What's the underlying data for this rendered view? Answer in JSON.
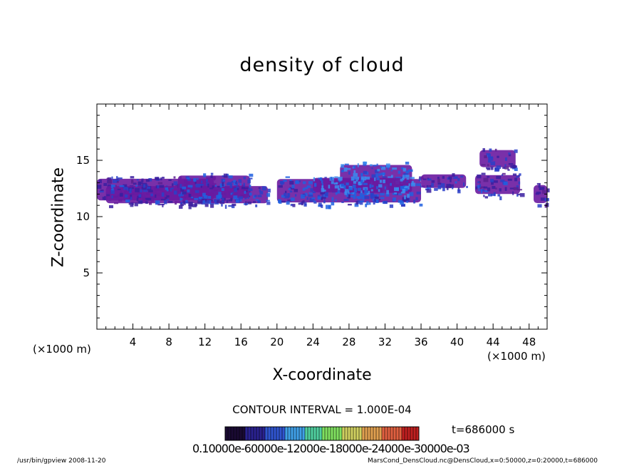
{
  "chart_data": {
    "type": "heatmap",
    "title": "density of cloud",
    "xlabel": "X-coordinate",
    "ylabel": "Z-coordinate",
    "x_unit_label": "(×1000 m)",
    "xlim": [
      0,
      50
    ],
    "ylim": [
      0,
      20
    ],
    "xticks": [
      4,
      8,
      12,
      16,
      20,
      24,
      28,
      32,
      36,
      40,
      44,
      48
    ],
    "yticks": [
      5,
      10,
      15
    ],
    "contour_interval_label": "CONTOUR INTERVAL = 1.000E-04",
    "time_label": "t=686000 s",
    "colorbar_labels": "0.10000e-60000e-12000e-18000e-24000e-30000e-03",
    "colorbar_colors": [
      "#1a0a33",
      "#2a2290",
      "#3055d0",
      "#40a0e8",
      "#50d0a0",
      "#80e060",
      "#d0d060",
      "#e0a050",
      "#e06040",
      "#c02020"
    ],
    "cloud_regions": [
      {
        "x": [
          0,
          13
        ],
        "z": [
          11.2,
          13.6
        ],
        "level": 0.1
      },
      {
        "x": [
          1,
          19
        ],
        "z": [
          11.0,
          12.9
        ],
        "level": 0.2
      },
      {
        "x": [
          9,
          17
        ],
        "z": [
          11.4,
          13.9
        ],
        "level": 0.3
      },
      {
        "x": [
          20,
          36
        ],
        "z": [
          11.0,
          13.6
        ],
        "level": 0.3
      },
      {
        "x": [
          27,
          35
        ],
        "z": [
          11.8,
          14.9
        ],
        "level": 0.5
      },
      {
        "x": [
          24,
          34
        ],
        "z": [
          12.0,
          13.6
        ],
        "level": 0.6
      },
      {
        "x": [
          36,
          41
        ],
        "z": [
          12.4,
          13.9
        ],
        "level": 0.15
      },
      {
        "x": [
          42.5,
          46.5
        ],
        "z": [
          14.2,
          16.1
        ],
        "level": 0.15
      },
      {
        "x": [
          42,
          47
        ],
        "z": [
          11.8,
          13.9
        ],
        "level": 0.15
      },
      {
        "x": [
          48.5,
          50
        ],
        "z": [
          11.0,
          13.0
        ],
        "level": 0.1
      }
    ],
    "grid": false,
    "legend": "colorbar bottom"
  },
  "footer": {
    "left": "/usr/bin/gpview  2008-11-20",
    "right": "MarsCond_DensCloud.nc@DensCloud,x=0:50000,z=0:20000,t=686000"
  }
}
